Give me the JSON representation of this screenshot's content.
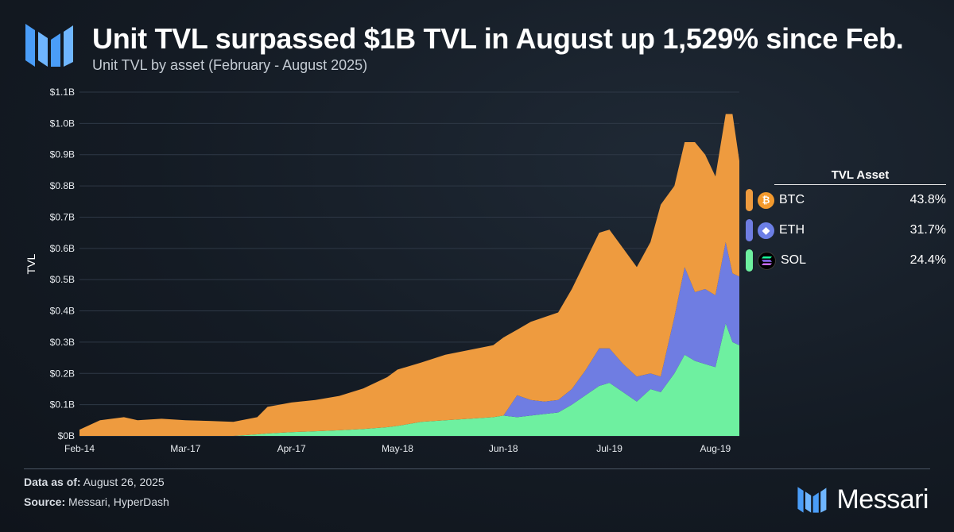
{
  "header": {
    "title": "Unit TVL surpassed $1B TVL in August up 1,529% since Feb.",
    "subtitle": "Unit TVL by asset (February - August 2025)"
  },
  "colors": {
    "btc": "#ee9b3f",
    "eth": "#6f7de2",
    "sol": "#6ef0a0",
    "brand_blue": "#4a9df8"
  },
  "chart_data": {
    "type": "area",
    "stacked": true,
    "ylabel": "TVL",
    "ylim": [
      0,
      1.1
    ],
    "yticks": [
      "$0B",
      "$0.1B",
      "$0.2B",
      "$0.3B",
      "$0.4B",
      "$0.5B",
      "$0.6B",
      "$0.7B",
      "$0.8B",
      "$0.9B",
      "$1.0B",
      "$1.1B"
    ],
    "xticks": [
      "Feb-14",
      "Mar-17",
      "Apr-17",
      "May-18",
      "Jun-18",
      "Jul-19",
      "Aug-19"
    ],
    "x": [
      "2025-02-14",
      "2025-02-20",
      "2025-02-27",
      "2025-03-03",
      "2025-03-10",
      "2025-03-17",
      "2025-03-24",
      "2025-03-31",
      "2025-04-07",
      "2025-04-10",
      "2025-04-17",
      "2025-04-24",
      "2025-05-01",
      "2025-05-08",
      "2025-05-15",
      "2025-05-18",
      "2025-05-25",
      "2025-06-01",
      "2025-06-08",
      "2025-06-15",
      "2025-06-18",
      "2025-06-22",
      "2025-06-26",
      "2025-06-30",
      "2025-07-04",
      "2025-07-08",
      "2025-07-12",
      "2025-07-16",
      "2025-07-19",
      "2025-07-23",
      "2025-07-27",
      "2025-07-31",
      "2025-08-03",
      "2025-08-07",
      "2025-08-10",
      "2025-08-13",
      "2025-08-16",
      "2025-08-19",
      "2025-08-22",
      "2025-08-24",
      "2025-08-26"
    ],
    "series": [
      {
        "name": "SOL",
        "values": [
          0,
          0,
          0,
          0,
          0,
          0,
          0,
          0,
          0.005,
          0.008,
          0.012,
          0.015,
          0.018,
          0.022,
          0.028,
          0.032,
          0.045,
          0.05,
          0.055,
          0.06,
          0.065,
          0.06,
          0.065,
          0.07,
          0.075,
          0.1,
          0.13,
          0.16,
          0.17,
          0.14,
          0.11,
          0.15,
          0.14,
          0.2,
          0.26,
          0.24,
          0.23,
          0.22,
          0.36,
          0.3,
          0.29
        ]
      },
      {
        "name": "ETH",
        "values": [
          0,
          0,
          0,
          0,
          0,
          0,
          0,
          0,
          0,
          0,
          0,
          0,
          0,
          0,
          0,
          0,
          0,
          0,
          0,
          0,
          0,
          0.07,
          0.05,
          0.04,
          0.04,
          0.05,
          0.08,
          0.12,
          0.11,
          0.09,
          0.08,
          0.05,
          0.05,
          0.18,
          0.28,
          0.22,
          0.24,
          0.23,
          0.26,
          0.22,
          0.22
        ]
      },
      {
        "name": "BTC",
        "values": [
          0.02,
          0.05,
          0.06,
          0.05,
          0.055,
          0.05,
          0.048,
          0.045,
          0.055,
          0.085,
          0.095,
          0.1,
          0.11,
          0.13,
          0.16,
          0.18,
          0.19,
          0.21,
          0.22,
          0.23,
          0.25,
          0.21,
          0.25,
          0.27,
          0.28,
          0.32,
          0.35,
          0.37,
          0.38,
          0.37,
          0.35,
          0.42,
          0.55,
          0.42,
          0.4,
          0.48,
          0.43,
          0.38,
          0.41,
          0.51,
          0.37
        ]
      }
    ],
    "legend": {
      "title": "TVL Asset",
      "position": "right",
      "items": [
        {
          "asset": "BTC",
          "share": "43.8%",
          "icon": "bitcoin-icon"
        },
        {
          "asset": "ETH",
          "share": "31.7%",
          "icon": "ethereum-icon"
        },
        {
          "asset": "SOL",
          "share": "24.4%",
          "icon": "solana-icon"
        }
      ]
    }
  },
  "footer": {
    "data_as_of_label": "Data as of:",
    "data_as_of_value": "August 26, 2025",
    "source_label": "Source:",
    "source_value": "Messari, HyperDash",
    "brand": "Messari"
  }
}
